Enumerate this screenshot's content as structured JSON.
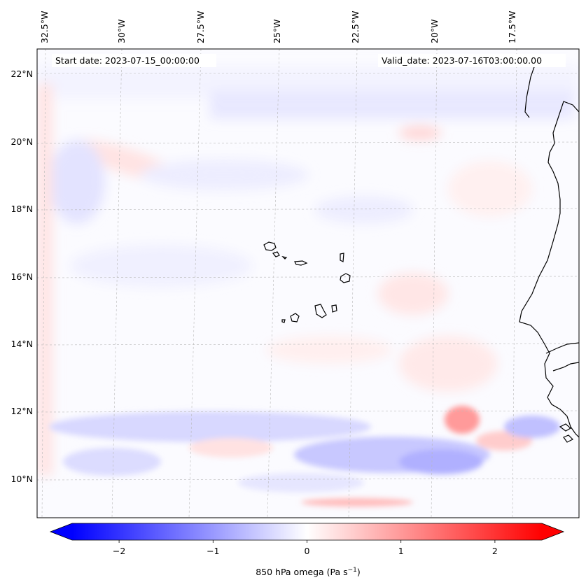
{
  "map": {
    "start_date_label": "Start date: 2023-07-15_00:00:00",
    "valid_date_label": "Valid_date: 2023-07-16T03:00:00.00",
    "lon_labels": [
      "32.5°W",
      "30°W",
      "27.5°W",
      "25°W",
      "22.5°W",
      "20°W",
      "17.5°W"
    ],
    "lat_labels": [
      "22°N",
      "20°N",
      "18°N",
      "16°N",
      "14°N",
      "12°N",
      "10°N"
    ],
    "coastline_color": "#000000"
  },
  "colorbar": {
    "ticks": [
      "−2",
      "−1",
      "0",
      "1",
      "2"
    ],
    "tick_values": [
      -2,
      -1,
      0,
      1,
      2
    ],
    "range": [
      -2.5,
      2.5
    ],
    "label": "850 hPa omega (Pa s",
    "label_exp": "−1",
    "label_close": ")",
    "colors": {
      "negative": "#0000ff",
      "zero": "#ffffff",
      "positive": "#ff0000"
    }
  }
}
